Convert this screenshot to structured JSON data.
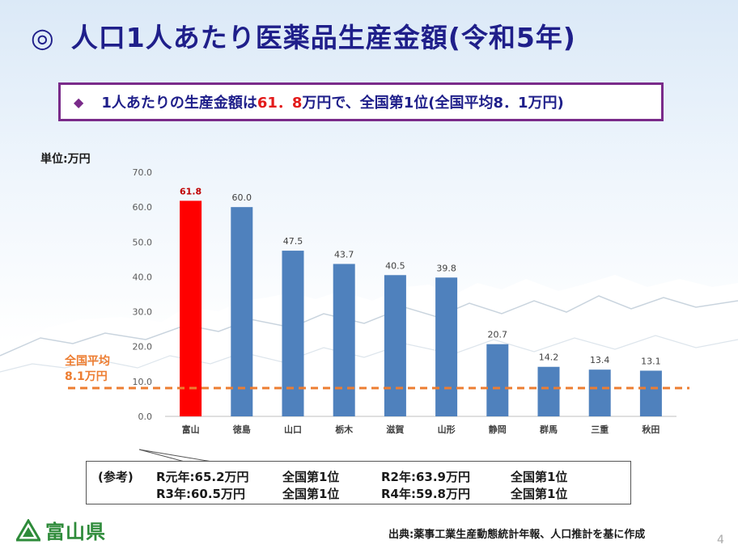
{
  "title": {
    "mark": "◎",
    "text": "人口1人あたり医薬品生産金額(令和5年)"
  },
  "highlight": {
    "bullet": "◆",
    "text_before": "1人あたりの生産金額は",
    "value": "61．8",
    "text_after": "万円で、全国第1位(全国平均8．1万円)"
  },
  "unit_label": "単位:万円",
  "average": {
    "line1": "全国平均",
    "line2": "8.1万円",
    "color": "#ed7d31"
  },
  "chart_data": {
    "type": "bar",
    "categories": [
      "富山",
      "徳島",
      "山口",
      "栃木",
      "滋賀",
      "山形",
      "静岡",
      "群馬",
      "三重",
      "秋田"
    ],
    "values": [
      61.8,
      60.0,
      47.5,
      43.7,
      40.5,
      39.8,
      20.7,
      14.2,
      13.4,
      13.1
    ],
    "value_labels": [
      "61.8",
      "60.0",
      "47.5",
      "43.7",
      "40.5",
      "39.8",
      "20.7",
      "14.2",
      "13.4",
      "13.1"
    ],
    "y_ticks": [
      "0.0",
      "10.0",
      "20.0",
      "30.0",
      "40.0",
      "50.0",
      "60.0",
      "70.0"
    ],
    "ylim": [
      0,
      70
    ],
    "reference_line": 8.1,
    "colors": {
      "highlight": "#ff0000",
      "default": "#4f81bd",
      "highlight_label": "#c00000",
      "label": "#404040",
      "reference": "#ed7d31"
    },
    "grid": false
  },
  "reference": {
    "label": "(参考)",
    "r1": "R元年:65.2万円",
    "r1_rank": "全国第1位",
    "r2": "R2年:63.9万円",
    "r2_rank": "全国第1位",
    "r3": "R3年:60.5万円",
    "r3_rank": "全国第1位",
    "r4": "R4年:59.8万円",
    "r4_rank": "全国第1位"
  },
  "logo": {
    "text": "富山県",
    "color": "#2e8b3a"
  },
  "source": "出典:薬事工業生産動態統計年報、人口推計を基に作成",
  "page_number": "4"
}
